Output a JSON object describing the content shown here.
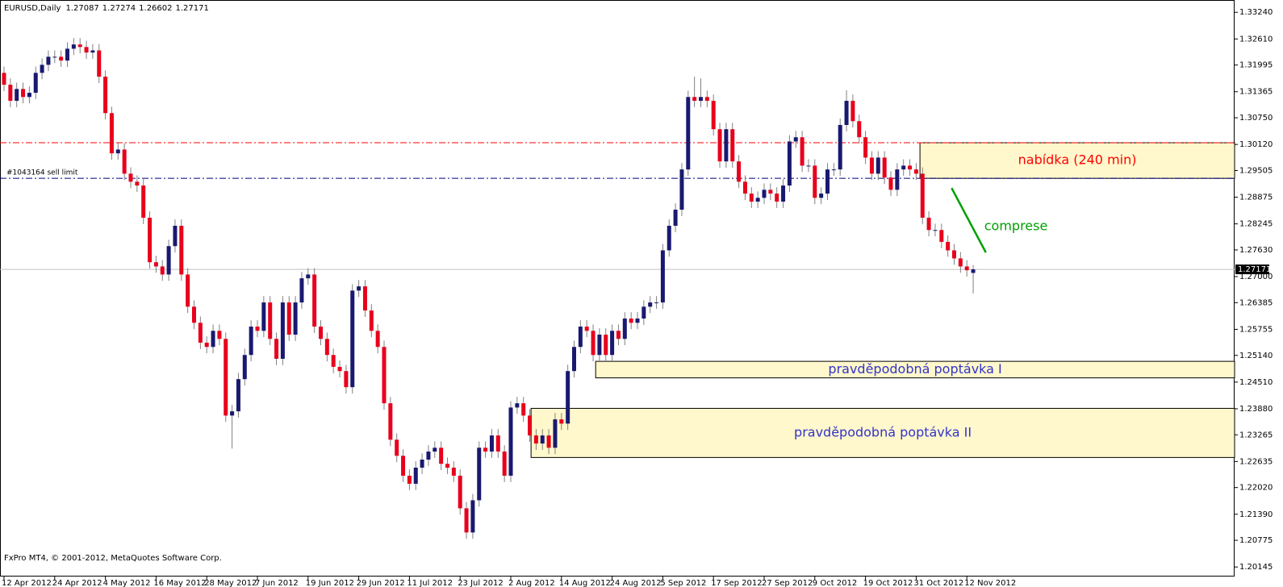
{
  "chart_data": {
    "type": "candlestick",
    "symbol": "EURUSD,Daily",
    "footer": "FxPro MT4, © 2001-2012, MetaQuotes Software Corp.",
    "up_color": "#191970",
    "down_color": "#e8001c",
    "wick_color": "#808080",
    "ylim": [
      1.1992,
      1.3353
    ],
    "yticks": [
      {
        "value": 1.3324,
        "label": "1.33240"
      },
      {
        "value": 1.3261,
        "label": "1.32610"
      },
      {
        "value": 1.31995,
        "label": "1.31995"
      },
      {
        "value": 1.31365,
        "label": "1.31365"
      },
      {
        "value": 1.3075,
        "label": "1.30750"
      },
      {
        "value": 1.3012,
        "label": "1.30120"
      },
      {
        "value": 1.29505,
        "label": "1.29505"
      },
      {
        "value": 1.28875,
        "label": "1.28875"
      },
      {
        "value": 1.28245,
        "label": "1.28245"
      },
      {
        "value": 1.2763,
        "label": "1.27630"
      },
      {
        "value": 1.27,
        "label": "1.27000"
      },
      {
        "value": 1.26385,
        "label": "1.26385"
      },
      {
        "value": 1.25755,
        "label": "1.25755"
      },
      {
        "value": 1.2514,
        "label": "1.25140"
      },
      {
        "value": 1.2451,
        "label": "1.24510"
      },
      {
        "value": 1.2388,
        "label": "1.23880"
      },
      {
        "value": 1.23265,
        "label": "1.23265"
      },
      {
        "value": 1.22635,
        "label": "1.22635"
      },
      {
        "value": 1.2202,
        "label": "1.22020"
      },
      {
        "value": 1.2139,
        "label": "1.21390"
      },
      {
        "value": 1.20775,
        "label": "1.20775"
      },
      {
        "value": 1.20145,
        "label": "1.20145"
      }
    ],
    "categories": [
      "12 Apr 2012",
      null,
      null,
      null,
      null,
      null,
      null,
      null,
      "24 Apr 2012",
      null,
      null,
      null,
      null,
      null,
      null,
      null,
      "4 May 2012",
      null,
      null,
      null,
      null,
      null,
      null,
      null,
      "16 May 2012",
      null,
      null,
      null,
      null,
      null,
      null,
      null,
      "28 May 2012",
      null,
      null,
      null,
      null,
      null,
      null,
      null,
      "7 Jun 2012",
      null,
      null,
      null,
      null,
      null,
      null,
      null,
      "19 Jun 2012",
      null,
      null,
      null,
      null,
      null,
      null,
      null,
      "29 Jun 2012",
      null,
      null,
      null,
      null,
      null,
      null,
      null,
      "11 Jul 2012",
      null,
      null,
      null,
      null,
      null,
      null,
      null,
      "23 Jul 2012",
      null,
      null,
      null,
      null,
      null,
      null,
      null,
      "2 Aug 2012",
      null,
      null,
      null,
      null,
      null,
      null,
      null,
      "14 Aug 2012",
      null,
      null,
      null,
      null,
      null,
      null,
      null,
      "24 Aug 2012",
      null,
      null,
      null,
      null,
      null,
      null,
      null,
      "5 Sep 2012",
      null,
      null,
      null,
      null,
      null,
      null,
      null,
      "17 Sep 2012",
      null,
      null,
      null,
      null,
      null,
      null,
      null,
      "27 Sep 2012",
      null,
      null,
      null,
      null,
      null,
      null,
      null,
      "9 Oct 2012",
      null,
      null,
      null,
      null,
      null,
      null,
      null,
      "19 Oct 2012",
      null,
      null,
      null,
      null,
      null,
      null,
      null,
      "31 Oct 2012",
      null,
      null,
      null,
      null,
      null,
      null,
      null,
      "12 Nov 2012",
      null
    ],
    "ohlc": [
      [
        1.3181,
        1.3196,
        1.3138,
        1.3153
      ],
      [
        1.3153,
        1.3168,
        1.31,
        1.3115
      ],
      [
        1.3115,
        1.3158,
        1.31,
        1.3143
      ],
      [
        1.3143,
        1.3158,
        1.3109,
        1.3124
      ],
      [
        1.3124,
        1.3149,
        1.3109,
        1.3134
      ],
      [
        1.3134,
        1.3196,
        1.3119,
        1.3181
      ],
      [
        1.3181,
        1.3215,
        1.3166,
        1.32
      ],
      [
        1.32,
        1.3234,
        1.3185,
        1.3219
      ],
      [
        1.3219,
        1.3234,
        1.3204,
        1.3219
      ],
      [
        1.3219,
        1.3234,
        1.3195,
        1.321
      ],
      [
        1.321,
        1.3253,
        1.3195,
        1.3238
      ],
      [
        1.3238,
        1.3263,
        1.3223,
        1.3248
      ],
      [
        1.3248,
        1.3263,
        1.3227,
        1.3242
      ],
      [
        1.3242,
        1.3257,
        1.3214,
        1.3229
      ],
      [
        1.3229,
        1.3249,
        1.3214,
        1.3234
      ],
      [
        1.3234,
        1.3249,
        1.3157,
        1.3172
      ],
      [
        1.3172,
        1.3187,
        1.3071,
        1.3086
      ],
      [
        1.3086,
        1.3101,
        1.2976,
        1.2991
      ],
      [
        1.2991,
        1.3015,
        1.2976,
        1.3
      ],
      [
        1.3,
        1.3015,
        1.2928,
        1.2943
      ],
      [
        1.2943,
        1.2958,
        1.2909,
        1.2924
      ],
      [
        1.2924,
        1.2939,
        1.29,
        1.2915
      ],
      [
        1.2915,
        1.293,
        1.2824,
        1.2839
      ],
      [
        1.2839,
        1.2854,
        1.2719,
        1.2734
      ],
      [
        1.2734,
        1.2749,
        1.2709,
        1.2724
      ],
      [
        1.2724,
        1.2739,
        1.269,
        1.2705
      ],
      [
        1.2705,
        1.2787,
        1.269,
        1.2772
      ],
      [
        1.2772,
        1.2835,
        1.2757,
        1.282
      ],
      [
        1.282,
        1.2835,
        1.269,
        1.2705
      ],
      [
        1.2705,
        1.272,
        1.2614,
        1.2629
      ],
      [
        1.2629,
        1.2644,
        1.2576,
        1.2591
      ],
      [
        1.2591,
        1.2606,
        1.2529,
        1.2544
      ],
      [
        1.2544,
        1.2559,
        1.2519,
        1.2534
      ],
      [
        1.2534,
        1.2587,
        1.2519,
        1.2572
      ],
      [
        1.2572,
        1.2587,
        1.2538,
        1.2553
      ],
      [
        1.2553,
        1.2568,
        1.2357,
        1.2372
      ],
      [
        1.2372,
        1.2397,
        1.2294,
        1.2382
      ],
      [
        1.2382,
        1.2473,
        1.2367,
        1.2458
      ],
      [
        1.2458,
        1.253,
        1.2443,
        1.2515
      ],
      [
        1.2515,
        1.2597,
        1.25,
        1.2582
      ],
      [
        1.2582,
        1.2597,
        1.2557,
        1.2572
      ],
      [
        1.2572,
        1.2654,
        1.2557,
        1.2639
      ],
      [
        1.2639,
        1.2654,
        1.2538,
        1.2553
      ],
      [
        1.2553,
        1.2568,
        1.2491,
        1.2506
      ],
      [
        1.2506,
        1.2654,
        1.2491,
        1.2639
      ],
      [
        1.2639,
        1.2654,
        1.2548,
        1.2563
      ],
      [
        1.2563,
        1.2654,
        1.2548,
        1.2639
      ],
      [
        1.2639,
        1.2711,
        1.2624,
        1.2696
      ],
      [
        1.2696,
        1.272,
        1.2681,
        1.2705
      ],
      [
        1.2705,
        1.272,
        1.2567,
        1.2582
      ],
      [
        1.2582,
        1.2597,
        1.2538,
        1.2553
      ],
      [
        1.2553,
        1.2568,
        1.25,
        1.2515
      ],
      [
        1.2515,
        1.253,
        1.2472,
        1.2487
      ],
      [
        1.2487,
        1.2502,
        1.2462,
        1.2477
      ],
      [
        1.2477,
        1.2492,
        1.2424,
        1.2439
      ],
      [
        1.2439,
        1.2682,
        1.2424,
        1.2667
      ],
      [
        1.2667,
        1.2692,
        1.2652,
        1.2677
      ],
      [
        1.2677,
        1.2692,
        1.2605,
        1.262
      ],
      [
        1.262,
        1.2635,
        1.2557,
        1.2572
      ],
      [
        1.2572,
        1.2587,
        1.2519,
        1.2534
      ],
      [
        1.2534,
        1.2549,
        1.2386,
        1.2401
      ],
      [
        1.2401,
        1.2416,
        1.23,
        1.2315
      ],
      [
        1.2315,
        1.233,
        1.2262,
        1.2277
      ],
      [
        1.2277,
        1.2292,
        1.2215,
        1.223
      ],
      [
        1.223,
        1.2245,
        1.2196,
        1.2211
      ],
      [
        1.2211,
        1.2264,
        1.2196,
        1.2249
      ],
      [
        1.2249,
        1.2283,
        1.2234,
        1.2268
      ],
      [
        1.2268,
        1.2302,
        1.2253,
        1.2287
      ],
      [
        1.2287,
        1.2311,
        1.2272,
        1.2296
      ],
      [
        1.2296,
        1.2311,
        1.2243,
        1.2258
      ],
      [
        1.2258,
        1.2273,
        1.2234,
        1.2249
      ],
      [
        1.2249,
        1.2264,
        1.2215,
        1.223
      ],
      [
        1.223,
        1.2245,
        1.2138,
        1.2153
      ],
      [
        1.2153,
        1.2168,
        1.2081,
        1.2096
      ],
      [
        1.2096,
        1.2187,
        1.2081,
        1.2172
      ],
      [
        1.2172,
        1.2311,
        1.2157,
        1.2296
      ],
      [
        1.2296,
        1.2311,
        1.2272,
        1.2287
      ],
      [
        1.2287,
        1.234,
        1.2272,
        1.2325
      ],
      [
        1.2325,
        1.234,
        1.2272,
        1.2287
      ],
      [
        1.2287,
        1.2302,
        1.2215,
        1.223
      ],
      [
        1.223,
        1.2406,
        1.2215,
        1.2391
      ],
      [
        1.2391,
        1.2416,
        1.2376,
        1.2401
      ],
      [
        1.2401,
        1.2416,
        1.2357,
        1.2372
      ],
      [
        1.2372,
        1.2387,
        1.231,
        1.2325
      ],
      [
        1.2325,
        1.234,
        1.2291,
        1.2306
      ],
      [
        1.2306,
        1.234,
        1.2291,
        1.2325
      ],
      [
        1.2325,
        1.234,
        1.2281,
        1.2296
      ],
      [
        1.2296,
        1.2378,
        1.2281,
        1.2363
      ],
      [
        1.2363,
        1.2378,
        1.2338,
        1.2353
      ],
      [
        1.2353,
        1.2492,
        1.2338,
        1.2477
      ],
      [
        1.2477,
        1.2549,
        1.2462,
        1.2534
      ],
      [
        1.2534,
        1.2597,
        1.2519,
        1.2582
      ],
      [
        1.2582,
        1.2597,
        1.2557,
        1.2572
      ],
      [
        1.2572,
        1.2587,
        1.25,
        1.2515
      ],
      [
        1.2515,
        1.2578,
        1.25,
        1.2563
      ],
      [
        1.2563,
        1.2578,
        1.25,
        1.2515
      ],
      [
        1.2515,
        1.2587,
        1.25,
        1.2572
      ],
      [
        1.2572,
        1.2587,
        1.2538,
        1.2553
      ],
      [
        1.2553,
        1.2616,
        1.2538,
        1.2601
      ],
      [
        1.2601,
        1.2616,
        1.2576,
        1.2591
      ],
      [
        1.2591,
        1.2616,
        1.2576,
        1.2601
      ],
      [
        1.2601,
        1.2644,
        1.2586,
        1.2629
      ],
      [
        1.2629,
        1.2654,
        1.2614,
        1.2639
      ],
      [
        1.2639,
        1.2654,
        1.2624,
        1.2639
      ],
      [
        1.2639,
        1.2777,
        1.2624,
        1.2762
      ],
      [
        1.2762,
        1.2835,
        1.2747,
        1.282
      ],
      [
        1.282,
        1.2873,
        1.2805,
        1.2858
      ],
      [
        1.2858,
        1.2968,
        1.2843,
        1.2953
      ],
      [
        1.2953,
        1.3139,
        1.2938,
        1.3124
      ],
      [
        1.3124,
        1.3172,
        1.31,
        1.3115
      ],
      [
        1.3115,
        1.3168,
        1.31,
        1.3124
      ],
      [
        1.3124,
        1.3139,
        1.31,
        1.3115
      ],
      [
        1.3115,
        1.313,
        1.3033,
        1.3048
      ],
      [
        1.3048,
        1.3063,
        1.2957,
        1.2972
      ],
      [
        1.2972,
        1.3063,
        1.2957,
        1.3048
      ],
      [
        1.3048,
        1.3063,
        1.2957,
        1.2972
      ],
      [
        1.2972,
        1.2987,
        1.2909,
        1.2924
      ],
      [
        1.2924,
        1.2939,
        1.2881,
        1.2896
      ],
      [
        1.2896,
        1.2911,
        1.2862,
        1.2877
      ],
      [
        1.2877,
        1.2901,
        1.2862,
        1.2886
      ],
      [
        1.2886,
        1.292,
        1.2871,
        1.2905
      ],
      [
        1.2905,
        1.292,
        1.2881,
        1.2896
      ],
      [
        1.2896,
        1.2911,
        1.2862,
        1.2877
      ],
      [
        1.2877,
        1.293,
        1.2862,
        1.2915
      ],
      [
        1.2915,
        1.3034,
        1.29,
        1.3019
      ],
      [
        1.3019,
        1.3044,
        1.3004,
        1.3029
      ],
      [
        1.3029,
        1.3044,
        1.2947,
        1.2962
      ],
      [
        1.2962,
        1.2977,
        1.2947,
        1.2962
      ],
      [
        1.2962,
        1.2977,
        1.2871,
        1.2886
      ],
      [
        1.2886,
        1.2911,
        1.2871,
        1.2896
      ],
      [
        1.2896,
        1.2968,
        1.2881,
        1.2953
      ],
      [
        1.2953,
        1.2968,
        1.2938,
        1.2953
      ],
      [
        1.2953,
        1.3073,
        1.2938,
        1.3058
      ],
      [
        1.3058,
        1.314,
        1.3043,
        1.3115
      ],
      [
        1.3115,
        1.313,
        1.3052,
        1.3067
      ],
      [
        1.3067,
        1.3082,
        1.3014,
        1.3029
      ],
      [
        1.3029,
        1.3044,
        1.2966,
        1.2981
      ],
      [
        1.2981,
        1.2996,
        1.2928,
        1.2943
      ],
      [
        1.2943,
        1.2996,
        1.2928,
        1.2981
      ],
      [
        1.2981,
        1.2996,
        1.2919,
        1.2934
      ],
      [
        1.2934,
        1.2949,
        1.289,
        1.2905
      ],
      [
        1.2905,
        1.2968,
        1.289,
        1.2953
      ],
      [
        1.2953,
        1.2977,
        1.2938,
        1.2962
      ],
      [
        1.2962,
        1.2977,
        1.2938,
        1.2953
      ],
      [
        1.2953,
        1.2968,
        1.2928,
        1.2943
      ],
      [
        1.2943,
        1.2958,
        1.2824,
        1.2839
      ],
      [
        1.2839,
        1.2854,
        1.2795,
        1.281
      ],
      [
        1.281,
        1.2825,
        1.2795,
        1.281
      ],
      [
        1.281,
        1.2825,
        1.2767,
        1.2782
      ],
      [
        1.2782,
        1.2797,
        1.2747,
        1.2762
      ],
      [
        1.2762,
        1.2777,
        1.2728,
        1.2743
      ],
      [
        1.2743,
        1.2758,
        1.2709,
        1.2724
      ],
      [
        1.2724,
        1.2739,
        1.27,
        1.2715
      ],
      [
        1.27087,
        1.27274,
        1.26602,
        1.27171
      ]
    ],
    "levels": [
      {
        "value": 1.3016,
        "color": "#ff0000"
      },
      {
        "value": 1.2932,
        "color": "#000080",
        "label": "#1043164 sell limit"
      }
    ],
    "zones": [
      {
        "label": "nabídka (240 min)",
        "x": 144.6,
        "top": 1.3016,
        "bottom": 1.2932,
        "label_color": "#ff0000"
      },
      {
        "label": "pravděpodobná poptávka I",
        "x": 93.4,
        "top": 1.25,
        "bottom": 1.2461,
        "label_color": "#3333cc"
      },
      {
        "label": "pravděpodobná poptávka II",
        "x": 83.2,
        "top": 1.2389,
        "bottom": 1.2273,
        "label_color": "#3333cc"
      }
    ],
    "annotations": [
      {
        "text": "comprese",
        "x": [
          149.6,
          155
        ],
        "y": [
          1.2909,
          1.2757
        ],
        "color": "#00a000"
      }
    ]
  }
}
